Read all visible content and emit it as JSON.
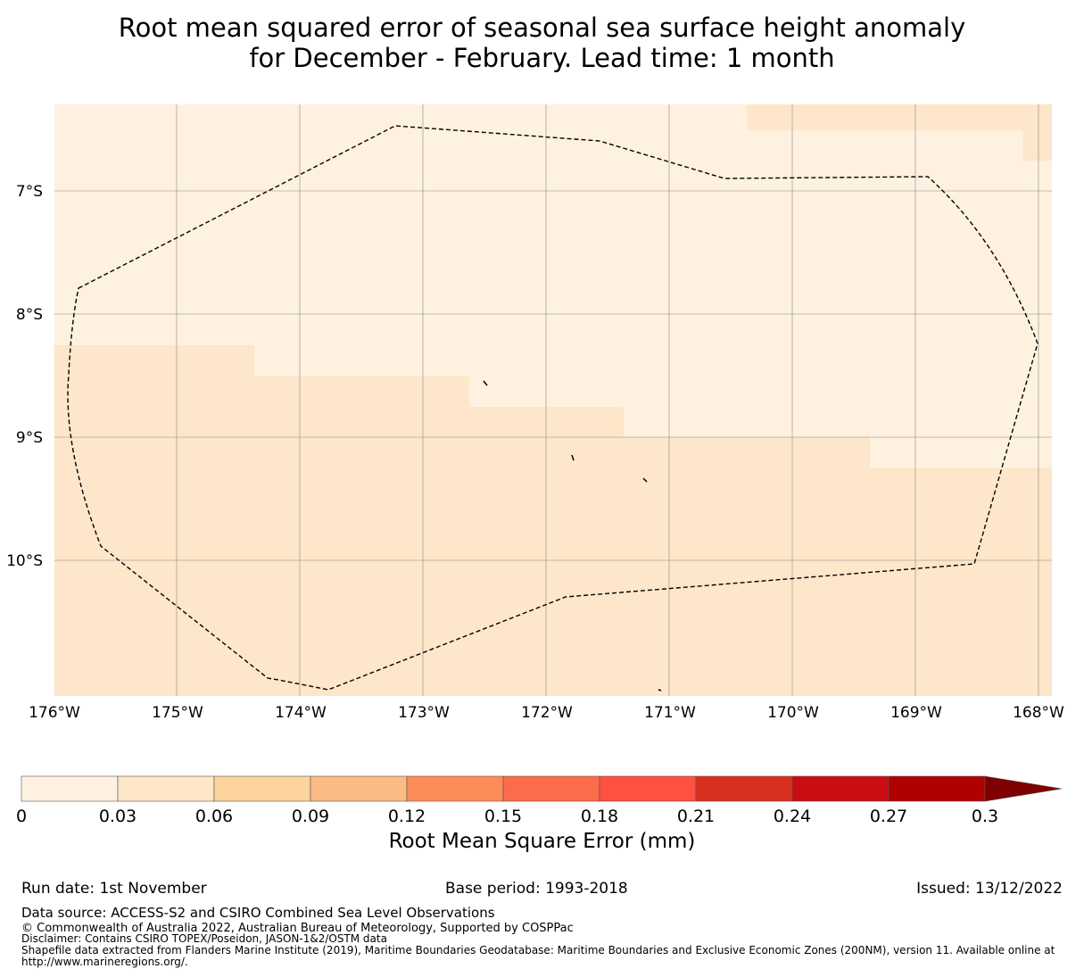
{
  "title": {
    "line1": "Root mean squared error of seasonal sea surface height anomaly",
    "line2": "for December - February. Lead time: 1 month"
  },
  "map": {
    "lat_labels": [
      "7°S",
      "8°S",
      "9°S",
      "10°S"
    ],
    "lon_labels": [
      "176°W",
      "175°W",
      "174°W",
      "173°W",
      "172°W",
      "171°W",
      "170°W",
      "169°W",
      "168°W"
    ],
    "colors": {
      "low": "#fef1e0",
      "mid": "#fde6c9",
      "boundary": "#000000",
      "grid": "#888888"
    }
  },
  "colorbar": {
    "label": "Root Mean Square Error (mm)",
    "ticks": [
      "0",
      "0.03",
      "0.06",
      "0.09",
      "0.12",
      "0.15",
      "0.18",
      "0.21",
      "0.24",
      "0.27",
      "0.3"
    ],
    "colors": [
      "#fff1e0",
      "#fee6c8",
      "#fdd49e",
      "#fdbb84",
      "#fc8d59",
      "#fc6c4a",
      "#ff5040",
      "#d7301f",
      "#c90d13",
      "#b00000",
      "#7f0000"
    ]
  },
  "footer": {
    "run_date": "Run date: 1st November",
    "base_period": "Base period: 1993-2018",
    "issued": "Issued: 13/12/2022",
    "data_source": "Data source: ACCESS-S2 and CSIRO Combined Sea Level Observations",
    "copyright": "© Commonwealth of Australia 2022, Australian Bureau of Meteorology, Supported by COSPPac",
    "disclaimer": "Disclaimer: Contains CSIRO TOPEX/Poseidon, JASON-1&2/OSTM data",
    "shapefile": "Shapefile data extracted from Flanders Marine Institute (2019), Maritime Boundaries Geodatabase: Maritime Boundaries and Exclusive Economic Zones (200NM), version 11. Available online at http://www.marineregions.org/."
  }
}
